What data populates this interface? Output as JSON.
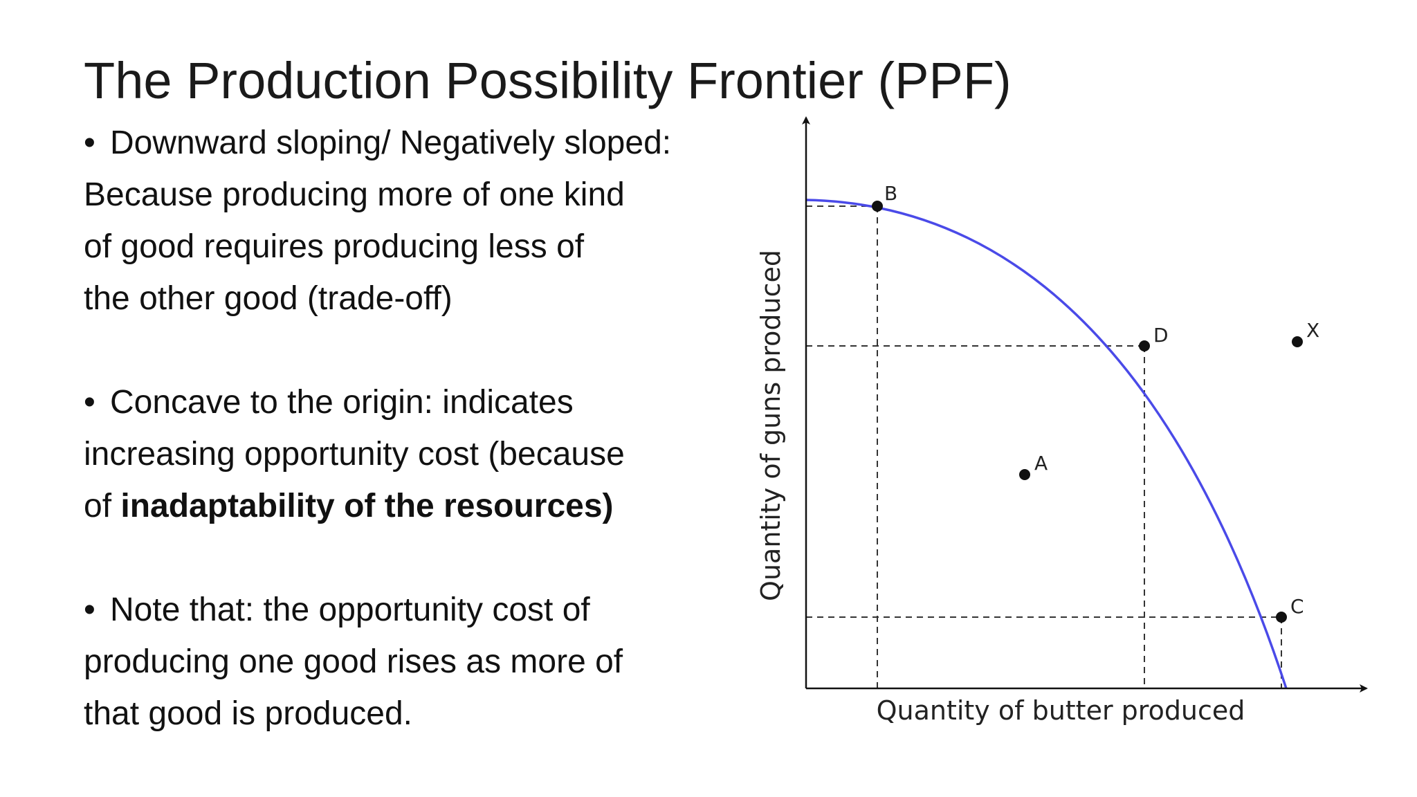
{
  "title": "The Production Possibility Frontier (PPF)",
  "bullets": [
    {
      "lines": [
        "Downward sloping/ Negatively sloped:",
        "Because producing more of one kind",
        "of good requires producing less of",
        "the other good (trade-off)"
      ]
    },
    {
      "lines": [
        "Concave to the origin: indicates",
        "increasing opportunity cost (because"
      ],
      "last_line_prefix": "of ",
      "last_line_bold": "inadaptability of the resources)"
    },
    {
      "lines": [
        "Note that: the opportunity cost of",
        "producing one good rises as more of",
        "that good is produced."
      ]
    }
  ],
  "diagram": {
    "x_axis_label": "Quantity of butter produced",
    "y_axis_label": "Quantity of guns produced",
    "curve_color": "#4a4ae8",
    "point_labels": {
      "B": "B",
      "D": "D",
      "A": "A",
      "C": "C",
      "X": "X"
    }
  }
}
